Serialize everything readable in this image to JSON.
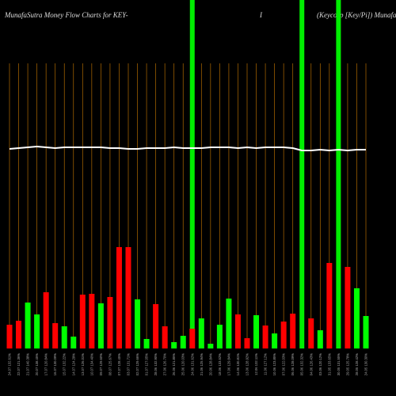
{
  "chart_data": {
    "type": "bar",
    "title": "MunafaSutra  Money Flow  Charts for KEY-",
    "title_mid": "I",
    "title_right": "(Keycorp [Key/Pi]) MunafaSutra.com",
    "categories": [
      "24.07 132.61%",
      "22.07 121.36%",
      "21.07 140.38%",
      "20.07 138.45%",
      "17.07 120.84%",
      "16.07 130.09%",
      "15.07 132.22%",
      "14.07 124.29%",
      "13.07 126.01%",
      "10.07 134.40%",
      "09.07 129.60%",
      "08.07 125.67%",
      "07.07 128.45%",
      "03.07 131.71%",
      "02.07 129.66%",
      "01.07 127.05%",
      "28.06 132.90%",
      "27.06 126.70%",
      "26.06 121.85%",
      "25.06 120.03%",
      "24.06 131.62%",
      "21.06 125.94%",
      "20.06 128.84%",
      "18.06 133.52%",
      "17.06 129.84%",
      "14.06 130.81%",
      "13.06 128.92%",
      "12.06 132.11%",
      "11.06 127.12%",
      "10.06 123.85%",
      "07.06 122.03%",
      "06.06 128.09%",
      "05.06 132.32%",
      "04.06 126.43%",
      "03.06 120.12%",
      "31.05 133.65%",
      "30.05 131.55%",
      "29.05 125.78%",
      "28.05 128.42%",
      "24.05 130.30%"
    ],
    "values": [
      30,
      35,
      58,
      43,
      71,
      32,
      28,
      15,
      68,
      69,
      57,
      65,
      128,
      128,
      62,
      12,
      56,
      28,
      8,
      16,
      25,
      38,
      6,
      30,
      63,
      43,
      13,
      42,
      29,
      19,
      34,
      44,
      null,
      38,
      23,
      108,
      null,
      103,
      76,
      41
    ],
    "colors": [
      "#ff0000",
      "#ff0000",
      "#00ff00",
      "#00ff00",
      "#ff0000",
      "#ff0000",
      "#00ff00",
      "#00ff00",
      "#ff0000",
      "#ff0000",
      "#00ff00",
      "#ff0000",
      "#ff0000",
      "#ff0000",
      "#00ff00",
      "#00ff00",
      "#ff0000",
      "#ff0000",
      "#00ff00",
      "#00ff00",
      "#ff0000",
      "#00ff00",
      "#00ff00",
      "#00ff00",
      "#00ff00",
      "#ff0000",
      "#ff0000",
      "#00ff00",
      "#ff0000",
      "#00ff00",
      "#ff0000",
      "#ff0000",
      "#00ff00",
      "#ff0000",
      "#00ff00",
      "#ff0000",
      "#00ff00",
      "#ff0000",
      "#00ff00",
      "#00ff00"
    ],
    "line": [
      252,
      253,
      254,
      255,
      254,
      253,
      254,
      254,
      254,
      254,
      254,
      253,
      253,
      252,
      252,
      253,
      253,
      253,
      254,
      253,
      253,
      253,
      254,
      254,
      254,
      253,
      254,
      253,
      254,
      254,
      254,
      253,
      250,
      250,
      251,
      250,
      251,
      250,
      251,
      251
    ],
    "highlights": [
      20,
      32,
      36
    ]
  }
}
